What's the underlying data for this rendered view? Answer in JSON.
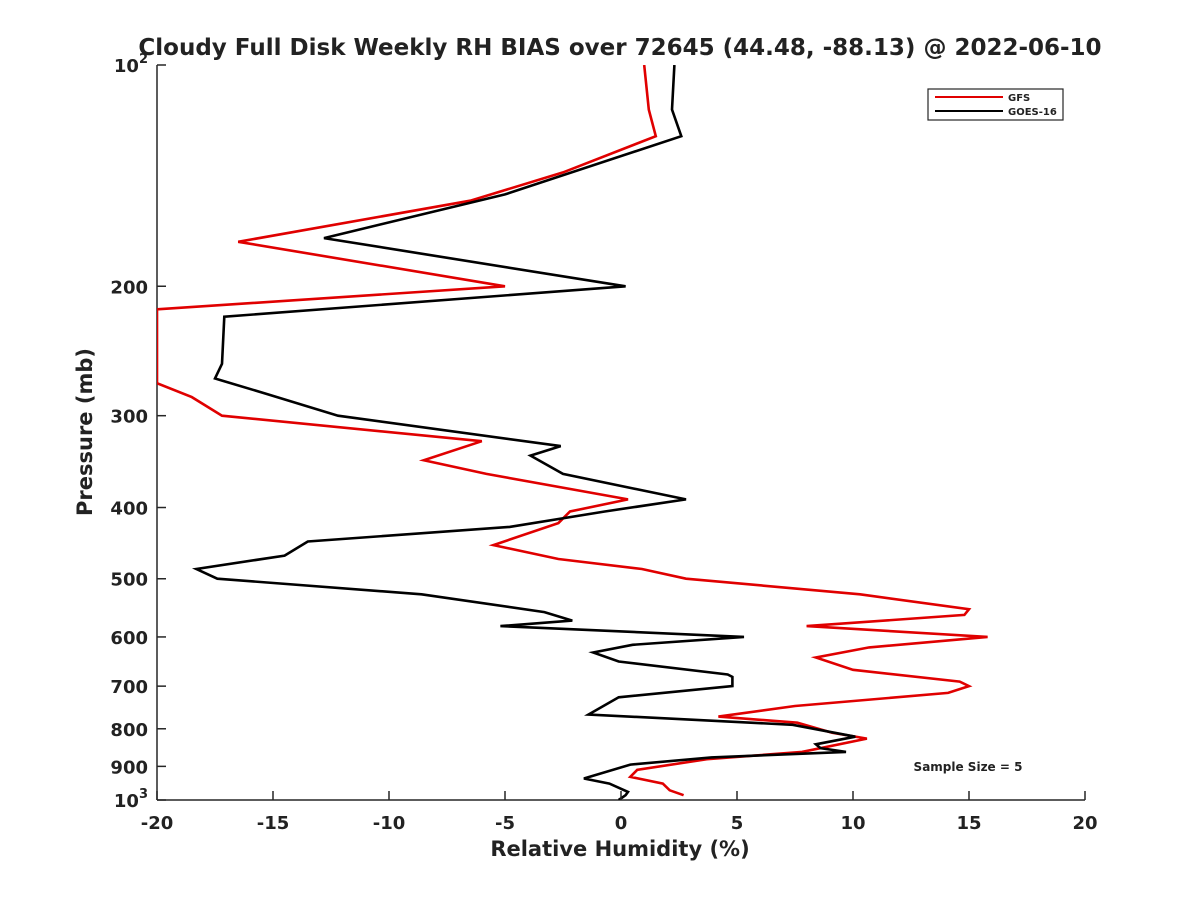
{
  "chart_data": {
    "type": "line",
    "title": "Cloudy Full Disk Weekly RH BIAS over 72645 (44.48, -88.13) @ 2022-06-10",
    "xlabel": "Relative Humidity (%)",
    "ylabel": "Pressure (mb)",
    "xlim": [
      -20,
      20
    ],
    "ylim": [
      100,
      1000
    ],
    "y_scale": "log",
    "y_reversed": true,
    "grid": false,
    "legend_position": "top-right",
    "x_ticks": [
      "-20",
      "-15",
      "-10",
      "-5",
      "0",
      "5",
      "10",
      "15",
      "20"
    ],
    "y_ticks": [
      {
        "base": "10",
        "exp": "2"
      },
      {
        "base": "200",
        "exp": ""
      },
      {
        "base": "300",
        "exp": ""
      },
      {
        "base": "400",
        "exp": ""
      },
      {
        "base": "500",
        "exp": ""
      },
      {
        "base": "600",
        "exp": ""
      },
      {
        "base": "700",
        "exp": ""
      },
      {
        "base": "800",
        "exp": ""
      },
      {
        "base": "900",
        "exp": ""
      },
      {
        "base": "10",
        "exp": "3"
      }
    ],
    "annotation": "Sample Size = 5",
    "series": [
      {
        "name": "GFS",
        "color": "#e00000",
        "points": [
          [
            1.0,
            100
          ],
          [
            1.2,
            115
          ],
          [
            1.5,
            125
          ],
          [
            -2.5,
            140
          ],
          [
            -6.5,
            153
          ],
          [
            -16.5,
            174
          ],
          [
            -5.0,
            200
          ],
          [
            -20.0,
            215
          ],
          [
            -20.0,
            271
          ],
          [
            -18.5,
            283
          ],
          [
            -17.2,
            300
          ],
          [
            -6.0,
            325
          ],
          [
            -8.5,
            345
          ],
          [
            -5.8,
            360
          ],
          [
            0.3,
            390
          ],
          [
            -2.2,
            405
          ],
          [
            -2.7,
            420
          ],
          [
            -5.5,
            450
          ],
          [
            -2.7,
            470
          ],
          [
            0.9,
            485
          ],
          [
            2.8,
            500
          ],
          [
            10.3,
            525
          ],
          [
            15.0,
            550
          ],
          [
            14.8,
            560
          ],
          [
            8.0,
            580
          ],
          [
            15.8,
            600
          ],
          [
            10.7,
            620
          ],
          [
            8.4,
            640
          ],
          [
            10.0,
            665
          ],
          [
            14.6,
            690
          ],
          [
            15.0,
            700
          ],
          [
            14.1,
            715
          ],
          [
            7.5,
            745
          ],
          [
            4.2,
            770
          ],
          [
            7.6,
            785
          ],
          [
            9.1,
            810
          ],
          [
            10.6,
            825
          ],
          [
            7.8,
            860
          ],
          [
            3.7,
            880
          ],
          [
            0.7,
            910
          ],
          [
            0.4,
            930
          ],
          [
            1.8,
            950
          ],
          [
            2.1,
            970
          ],
          [
            2.7,
            985
          ]
        ]
      },
      {
        "name": "GOES-16",
        "color": "#000000",
        "points": [
          [
            2.3,
            100
          ],
          [
            2.2,
            115
          ],
          [
            2.6,
            125
          ],
          [
            -5.0,
            150
          ],
          [
            -12.8,
            172
          ],
          [
            0.2,
            200
          ],
          [
            -17.1,
            220
          ],
          [
            -17.2,
            255
          ],
          [
            -17.5,
            267
          ],
          [
            -15.3,
            280
          ],
          [
            -12.2,
            300
          ],
          [
            -2.6,
            330
          ],
          [
            -3.9,
            340
          ],
          [
            -2.5,
            360
          ],
          [
            2.8,
            390
          ],
          [
            -0.7,
            405
          ],
          [
            -4.8,
            425
          ],
          [
            -13.5,
            445
          ],
          [
            -14.5,
            465
          ],
          [
            -18.3,
            485
          ],
          [
            -17.4,
            500
          ],
          [
            -8.6,
            525
          ],
          [
            -3.3,
            555
          ],
          [
            -2.1,
            570
          ],
          [
            -5.2,
            580
          ],
          [
            5.3,
            600
          ],
          [
            0.5,
            615
          ],
          [
            -1.2,
            630
          ],
          [
            -0.1,
            648
          ],
          [
            4.6,
            675
          ],
          [
            4.8,
            680
          ],
          [
            4.8,
            700
          ],
          [
            -0.1,
            725
          ],
          [
            -1.4,
            765
          ],
          [
            7.4,
            790
          ],
          [
            10.1,
            820
          ],
          [
            8.4,
            840
          ],
          [
            8.6,
            850
          ],
          [
            9.7,
            860
          ],
          [
            3.9,
            875
          ],
          [
            0.4,
            895
          ],
          [
            -1.6,
            935
          ],
          [
            -0.5,
            950
          ],
          [
            0.3,
            975
          ],
          [
            0.2,
            985
          ],
          [
            -0.1,
            1000
          ]
        ]
      }
    ]
  }
}
